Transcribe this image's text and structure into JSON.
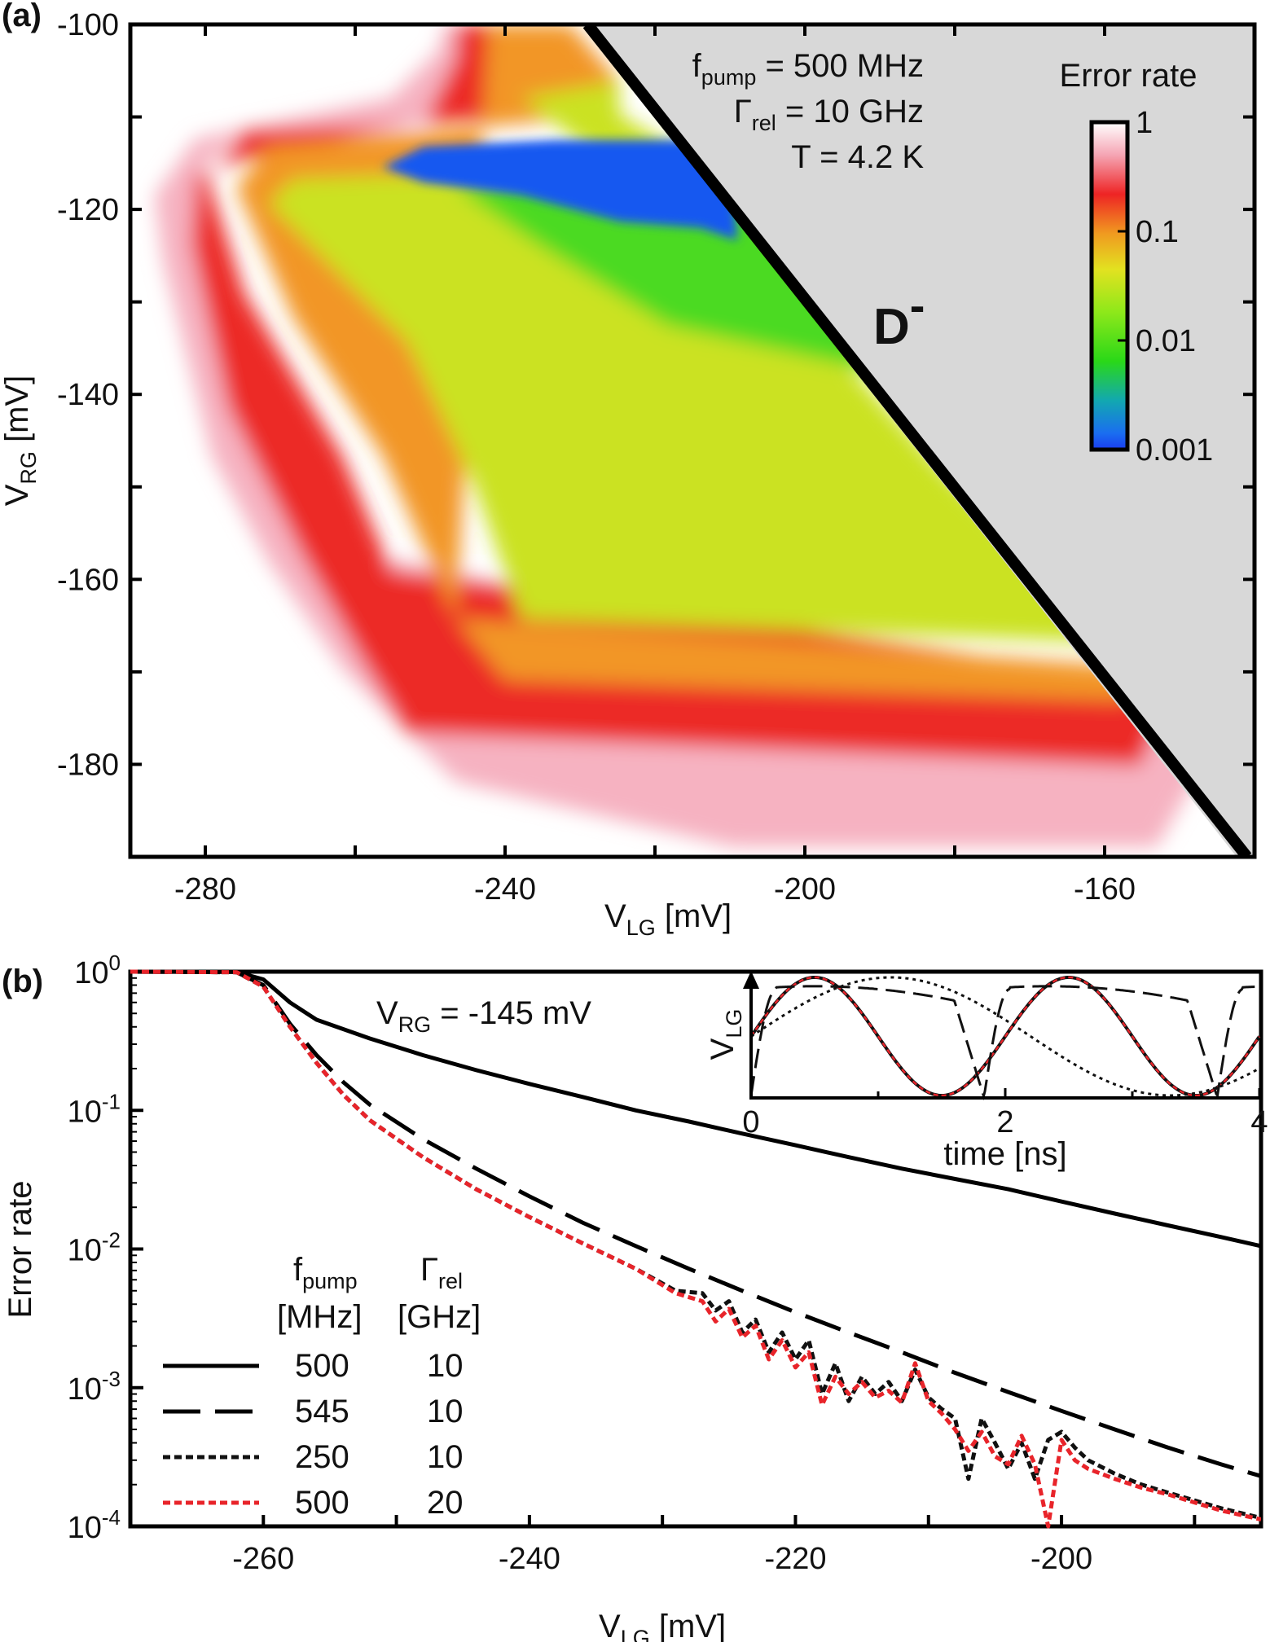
{
  "chart_data": [
    {
      "panel_label": "(a)",
      "type": "heatmap",
      "xlabel": {
        "main": "V",
        "sub": "LG",
        "unit": " [mV]"
      },
      "ylabel": {
        "main": "V",
        "sub": "RG",
        "unit": " [mV]"
      },
      "xlim": [
        -290,
        -140
      ],
      "ylim": [
        -190,
        -100
      ],
      "xticks": [
        "-280",
        "-240",
        "-200",
        "-160"
      ],
      "yticks": [
        "-100",
        "-120",
        "-140",
        "-160",
        "-180"
      ],
      "xtick_values": [
        -280,
        -240,
        -200,
        -160
      ],
      "ytick_values": [
        -100,
        -120,
        -140,
        -160,
        -180
      ],
      "annotations": [
        {
          "main": "f",
          "sub": "pump",
          "rest": " = 500 MHz"
        },
        {
          "main": "Γ",
          "sub": "rel",
          "rest": " = 10 GHz"
        },
        {
          "main": "T = 4.2 K",
          "sub": "",
          "rest": ""
        }
      ],
      "region_label": "D",
      "region_label_superscript": "-",
      "boundary_line": {
        "from": [
          -229,
          -100
        ],
        "to": [
          -141,
          -190
        ]
      },
      "colorbar": {
        "title": "Error rate",
        "scale": "log",
        "range": [
          0.001,
          1
        ],
        "tick_labels": [
          "1",
          "0.1",
          "0.01",
          "0.001"
        ],
        "tick_values": [
          1,
          0.1,
          0.01,
          0.001
        ]
      },
      "colors": {
        "forbidden_region": "#d8d8d8",
        "boundary": "#000000"
      }
    },
    {
      "panel_label": "(b)",
      "type": "line",
      "xlabel": {
        "main": "V",
        "sub": "LG",
        "unit": " [mV]"
      },
      "ylabel": "Error rate",
      "yscale": "log",
      "xlim": [
        -270,
        -185
      ],
      "ylim": [
        0.0001,
        1
      ],
      "xticks": [
        "-260",
        "-240",
        "-220",
        "-200"
      ],
      "xtick_values": [
        -260,
        -240,
        -220,
        -200
      ],
      "yticks": [
        {
          "base": "10",
          "exp": "0"
        },
        {
          "base": "10",
          "exp": "-1"
        },
        {
          "base": "10",
          "exp": "-2"
        },
        {
          "base": "10",
          "exp": "-3"
        },
        {
          "base": "10",
          "exp": "-4"
        }
      ],
      "annotation": {
        "main": "V",
        "sub": "RG",
        "rest": " = -145 mV"
      },
      "legend": {
        "header1": {
          "main": "f",
          "sub": "pump"
        },
        "header2": {
          "main": "Γ",
          "sub": "rel"
        },
        "unit1": "[MHz]",
        "unit2": "[GHz]",
        "entries": [
          {
            "style": "solid",
            "color": "#000000",
            "f": "500",
            "g": "10"
          },
          {
            "style": "longdash",
            "color": "#000000",
            "f": "545",
            "g": "10"
          },
          {
            "style": "dotted",
            "color": "#000000",
            "f": "250",
            "g": "10"
          },
          {
            "style": "dotted",
            "color": "#e8242a",
            "f": "500",
            "g": "20"
          }
        ]
      },
      "series": [
        {
          "key": "solid",
          "points": [
            [
              -270,
              1
            ],
            [
              -262,
              0.995
            ],
            [
              -260,
              0.88
            ],
            [
              -258,
              0.6
            ],
            [
              -256,
              0.45
            ],
            [
              -252,
              0.33
            ],
            [
              -248,
              0.25
            ],
            [
              -244,
              0.195
            ],
            [
              -240,
              0.155
            ],
            [
              -236,
              0.125
            ],
            [
              -232,
              0.1
            ],
            [
              -228,
              0.083
            ],
            [
              -224,
              0.068
            ],
            [
              -220,
              0.056
            ],
            [
              -216,
              0.046
            ],
            [
              -212,
              0.038
            ],
            [
              -208,
              0.032
            ],
            [
              -204,
              0.027
            ],
            [
              -200,
              0.022
            ],
            [
              -196,
              0.018
            ],
            [
              -192,
              0.0148
            ],
            [
              -188,
              0.0122
            ],
            [
              -185,
              0.0105
            ]
          ]
        },
        {
          "key": "longdash",
          "points": [
            [
              -270,
              1
            ],
            [
              -262,
              0.99
            ],
            [
              -260,
              0.8
            ],
            [
              -258,
              0.42
            ],
            [
              -256,
              0.25
            ],
            [
              -254,
              0.16
            ],
            [
              -252,
              0.11
            ],
            [
              -248,
              0.062
            ],
            [
              -244,
              0.038
            ],
            [
              -240,
              0.024
            ],
            [
              -236,
              0.0155
            ],
            [
              -232,
              0.0105
            ],
            [
              -228,
              0.0072
            ],
            [
              -224,
              0.005
            ],
            [
              -220,
              0.0035
            ],
            [
              -216,
              0.0025
            ],
            [
              -212,
              0.0018
            ],
            [
              -208,
              0.00128
            ],
            [
              -204,
              0.00093
            ],
            [
              -200,
              0.00068
            ],
            [
              -196,
              0.0005
            ],
            [
              -192,
              0.00037
            ],
            [
              -188,
              0.00028
            ],
            [
              -185,
              0.00023
            ]
          ]
        },
        {
          "key": "dotted",
          "points": [
            [
              -270,
              1
            ],
            [
              -262,
              0.99
            ],
            [
              -260,
              0.78
            ],
            [
              -258,
              0.4
            ],
            [
              -256,
              0.22
            ],
            [
              -254,
              0.13
            ],
            [
              -252,
              0.085
            ],
            [
              -248,
              0.046
            ],
            [
              -244,
              0.027
            ],
            [
              -240,
              0.017
            ],
            [
              -236,
              0.011
            ],
            [
              -232,
              0.0072
            ],
            [
              -229,
              0.005
            ],
            [
              -227,
              0.0048
            ],
            [
              -226,
              0.0036
            ],
            [
              -225,
              0.0042
            ],
            [
              -224,
              0.0025
            ],
            [
              -223,
              0.0031
            ],
            [
              -222,
              0.0018
            ],
            [
              -221,
              0.0025
            ],
            [
              -220,
              0.0016
            ],
            [
              -219,
              0.0022
            ],
            [
              -218,
              0.0009
            ],
            [
              -217,
              0.0015
            ],
            [
              -216,
              0.0008
            ],
            [
              -215,
              0.0012
            ],
            [
              -214,
              0.0009
            ],
            [
              -213,
              0.0011
            ],
            [
              -212,
              0.0008
            ],
            [
              -211,
              0.00135
            ],
            [
              -210,
              0.00085
            ],
            [
              -209,
              0.0007
            ],
            [
              -208,
              0.0006
            ],
            [
              -207,
              0.00022
            ],
            [
              -206,
              0.0006
            ],
            [
              -205,
              0.0004
            ],
            [
              -204,
              0.00026
            ],
            [
              -203,
              0.0004
            ],
            [
              -202,
              0.00022
            ],
            [
              -201,
              0.00042
            ],
            [
              -200,
              0.00048
            ],
            [
              -199,
              0.00037
            ],
            [
              -198,
              0.0003
            ],
            [
              -196,
              0.00024
            ],
            [
              -194,
              0.0002
            ],
            [
              -192,
              0.000175
            ],
            [
              -188,
              0.000135
            ],
            [
              -185,
              0.000115
            ]
          ]
        },
        {
          "key": "red",
          "points": [
            [
              -270,
              1
            ],
            [
              -262,
              0.99
            ],
            [
              -260,
              0.78
            ],
            [
              -258,
              0.4
            ],
            [
              -256,
              0.22
            ],
            [
              -254,
              0.13
            ],
            [
              -252,
              0.085
            ],
            [
              -248,
              0.046
            ],
            [
              -244,
              0.027
            ],
            [
              -240,
              0.017
            ],
            [
              -236,
              0.011
            ],
            [
              -232,
              0.0072
            ],
            [
              -229,
              0.0048
            ],
            [
              -227,
              0.0042
            ],
            [
              -226,
              0.003
            ],
            [
              -225,
              0.0037
            ],
            [
              -224,
              0.0023
            ],
            [
              -223,
              0.0028
            ],
            [
              -222,
              0.0016
            ],
            [
              -221,
              0.0022
            ],
            [
              -220,
              0.0014
            ],
            [
              -219,
              0.0018
            ],
            [
              -218,
              0.00075
            ],
            [
              -217,
              0.0012
            ],
            [
              -216,
              0.0009
            ],
            [
              -215,
              0.0011
            ],
            [
              -214,
              0.00085
            ],
            [
              -213,
              0.00095
            ],
            [
              -212,
              0.00078
            ],
            [
              -211,
              0.0015
            ],
            [
              -210,
              0.0008
            ],
            [
              -209,
              0.00065
            ],
            [
              -208,
              0.0005
            ],
            [
              -207,
              0.00035
            ],
            [
              -206,
              0.00048
            ],
            [
              -205,
              0.00032
            ],
            [
              -204,
              0.00028
            ],
            [
              -203,
              0.00045
            ],
            [
              -202,
              0.00028
            ],
            [
              -201,
              0.0001
            ],
            [
              -200,
              0.00042
            ],
            [
              -199,
              0.0003
            ],
            [
              -198,
              0.00026
            ],
            [
              -196,
              0.00022
            ],
            [
              -194,
              0.00019
            ],
            [
              -192,
              0.00017
            ],
            [
              -188,
              0.00013
            ],
            [
              -185,
              0.000112
            ]
          ]
        }
      ],
      "inset": {
        "ylabel": {
          "main": "V",
          "sub": "LG"
        },
        "xlabel": "time [ns]",
        "xlim": [
          0,
          4
        ],
        "xticks": [
          "0",
          "2",
          "4"
        ],
        "xtick_values": [
          0,
          2,
          4
        ]
      }
    }
  ]
}
